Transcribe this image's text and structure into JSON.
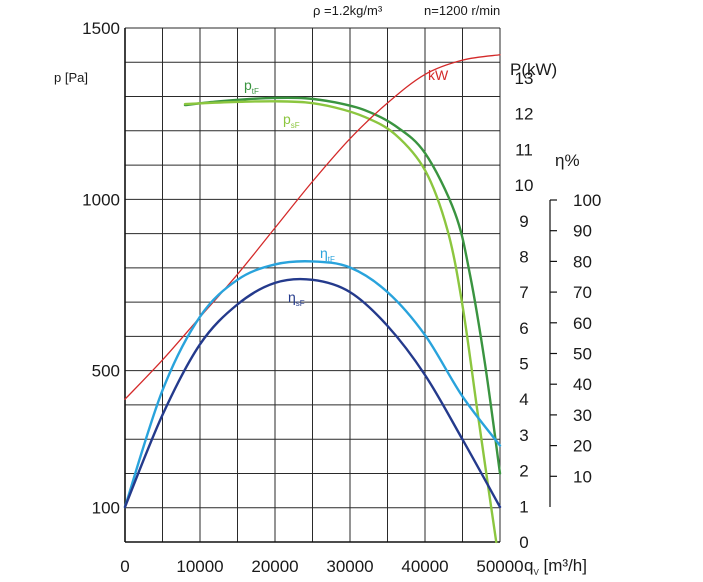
{
  "chart_data": {
    "type": "line",
    "header": {
      "density": "ρ =1.2kg/m³",
      "speed": "n=1200 r/min"
    },
    "x_axis": {
      "label": "q",
      "label_sub": "V",
      "label_unit": " [m³/h]",
      "ticks": [
        "0",
        "10000",
        "20000",
        "30000",
        "40000",
        "50000"
      ],
      "range": [
        0,
        50000
      ]
    },
    "pressure_axis": {
      "label": "p  [Pa]",
      "ticks": [
        {
          "label": "1500",
          "value": 1500
        },
        {
          "label": "1000",
          "value": 1000
        },
        {
          "label": "500",
          "value": 500
        },
        {
          "label": "100",
          "value": 100
        }
      ],
      "range": [
        0,
        1500
      ]
    },
    "power_axis": {
      "label": "P(kW)",
      "ticks": [
        "0",
        "1",
        "2",
        "3",
        "4",
        "5",
        "6",
        "7",
        "8",
        "9",
        "10",
        "11",
        "12",
        "13"
      ],
      "range": [
        0,
        14.4
      ]
    },
    "efficiency_axis": {
      "label": "η%",
      "ticks": [
        "10",
        "20",
        "30",
        "40",
        "50",
        "60",
        "70",
        "80",
        "90",
        "100"
      ],
      "range": [
        0,
        100
      ]
    },
    "series": [
      {
        "key": "ptF",
        "label": "p",
        "label_sub": "tF",
        "color": "#3a9440",
        "axis": "pressure",
        "x": [
          8000,
          12000,
          16000,
          20000,
          24000,
          28000,
          32000,
          36000,
          40000,
          44000,
          46000,
          48000,
          50000
        ],
        "y": [
          1275,
          1285,
          1292,
          1296,
          1295,
          1283,
          1260,
          1215,
          1135,
          960,
          780,
          520,
          200
        ]
      },
      {
        "key": "psF",
        "label": "p",
        "label_sub": "sF",
        "color": "#8cc63f",
        "axis": "pressure",
        "x": [
          8000,
          12000,
          16000,
          20000,
          24000,
          28000,
          32000,
          36000,
          40000,
          43000,
          45000,
          47000,
          48500,
          49500
        ],
        "y": [
          1278,
          1282,
          1285,
          1286,
          1283,
          1268,
          1240,
          1190,
          1085,
          910,
          690,
          380,
          150,
          0
        ]
      },
      {
        "key": "kW",
        "label": "kW",
        "color": "#d42a2a",
        "axis": "power",
        "x": [
          0,
          5000,
          10000,
          15000,
          20000,
          25000,
          30000,
          35000,
          40000,
          45000,
          50000
        ],
        "y": [
          4.0,
          5.1,
          6.3,
          7.5,
          8.8,
          10.1,
          11.3,
          12.3,
          13.1,
          13.5,
          13.65
        ]
      },
      {
        "key": "etF",
        "label": "η",
        "label_sub": "tF",
        "color": "#29a3dc",
        "axis": "efficiency",
        "x": [
          0,
          5000,
          10000,
          15000,
          20000,
          25000,
          30000,
          35000,
          40000,
          45000,
          50000
        ],
        "y": [
          0,
          38,
          62,
          74,
          79,
          80,
          78,
          70,
          56,
          36,
          20
        ]
      },
      {
        "key": "esF",
        "label": "η",
        "label_sub": "sF",
        "color": "#243a8c",
        "axis": "efficiency",
        "x": [
          0,
          5000,
          10000,
          15000,
          20000,
          25000,
          30000,
          35000,
          40000,
          45000,
          50000
        ],
        "y": [
          0,
          30,
          53,
          66,
          73,
          74,
          70,
          59,
          43,
          22,
          0
        ]
      }
    ],
    "grid": true
  }
}
